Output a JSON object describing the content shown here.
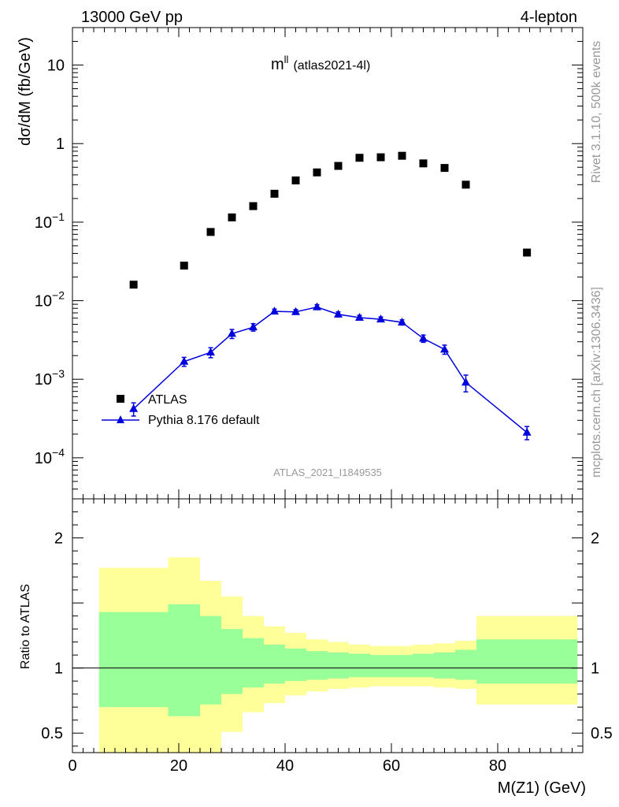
{
  "header": {
    "left": "13000 GeV pp",
    "right": "4-lepton"
  },
  "side_text": {
    "top": "Rivet 3.1.10,  500k events",
    "bottom": "mcplots.cern.ch [arXiv:1306.3436]"
  },
  "chart_data": [
    {
      "type": "scatter",
      "panel": "main",
      "title": "m",
      "title_sup": "ll",
      "title_note": "(atlas2021-4l)",
      "watermark": "ATLAS_2021_I1849535",
      "ylabel": "dσ/dM (fb/GeV)",
      "yscale": "log",
      "ylim": [
        3e-05,
        30
      ],
      "xlim": [
        0,
        96
      ],
      "y_ticks": [
        {
          "value": 0.0001,
          "base": "10",
          "exp": "−4"
        },
        {
          "value": 0.001,
          "base": "10",
          "exp": "−3"
        },
        {
          "value": 0.01,
          "base": "10",
          "exp": "−2"
        },
        {
          "value": 0.1,
          "base": "10",
          "exp": "−1"
        },
        {
          "value": 1,
          "base": "1",
          "exp": ""
        },
        {
          "value": 10,
          "base": "10",
          "exp": ""
        }
      ],
      "legend": {
        "position": "bottom-left",
        "data_label": "ATLAS",
        "mc_label": "Pythia 8.176 default"
      },
      "series": [
        {
          "name": "ATLAS",
          "marker": "square",
          "color": "#000000",
          "x": [
            11.5,
            21,
            26,
            30,
            34,
            38,
            42,
            46,
            50,
            54,
            58,
            62,
            66,
            70,
            74,
            85.5
          ],
          "y": [
            0.016,
            0.028,
            0.075,
            0.115,
            0.16,
            0.23,
            0.34,
            0.43,
            0.52,
            0.66,
            0.67,
            0.7,
            0.56,
            0.49,
            0.3,
            0.041
          ]
        },
        {
          "name": "Pythia 8.176 default",
          "marker": "triangle",
          "color": "#0000dd",
          "x": [
            11.5,
            21,
            26,
            30,
            34,
            38,
            42,
            46,
            50,
            54,
            58,
            62,
            66,
            70,
            74,
            85.5
          ],
          "y": [
            0.00042,
            0.00168,
            0.0022,
            0.0038,
            0.0046,
            0.0073,
            0.0072,
            0.0083,
            0.0067,
            0.0061,
            0.0058,
            0.0053,
            0.0033,
            0.0024,
            0.00091,
            0.00021
          ],
          "err": [
            8e-05,
            0.00022,
            0.00032,
            0.0005,
            0.0005,
            0.0005,
            0.0005,
            0.0006,
            0.0005,
            0.0004,
            0.0004,
            0.0004,
            0.00035,
            0.00032,
            0.00022,
            4e-05
          ]
        }
      ]
    },
    {
      "type": "area",
      "panel": "ratio",
      "ylabel": "Ratio to ATLAS",
      "xlabel": "M(Z1) (GeV)",
      "ylim": [
        0.35,
        2.3
      ],
      "xlim": [
        0,
        96
      ],
      "x_ticks": [
        0,
        20,
        40,
        60,
        80
      ],
      "y_ticks": [
        0.5,
        1,
        2
      ],
      "y_tick_labels": [
        "0.5",
        "1",
        "2"
      ],
      "reference_line": 1,
      "band_colors": {
        "inner": "#99ff99",
        "outer": "#ffff99"
      },
      "bins": [
        {
          "lo": 5,
          "hi": 18,
          "in_lo": 0.7,
          "in_hi": 1.43,
          "out_lo": 0.35,
          "out_hi": 1.77
        },
        {
          "lo": 18,
          "hi": 24,
          "in_lo": 0.63,
          "in_hi": 1.49,
          "out_lo": 0.35,
          "out_hi": 1.85
        },
        {
          "lo": 24,
          "hi": 28,
          "in_lo": 0.72,
          "in_hi": 1.4,
          "out_lo": 0.35,
          "out_hi": 1.67
        },
        {
          "lo": 28,
          "hi": 32,
          "in_lo": 0.8,
          "in_hi": 1.3,
          "out_lo": 0.51,
          "out_hi": 1.55
        },
        {
          "lo": 32,
          "hi": 36,
          "in_lo": 0.85,
          "in_hi": 1.23,
          "out_lo": 0.66,
          "out_hi": 1.4
        },
        {
          "lo": 36,
          "hi": 40,
          "in_lo": 0.88,
          "in_hi": 1.18,
          "out_lo": 0.73,
          "out_hi": 1.32
        },
        {
          "lo": 40,
          "hi": 44,
          "in_lo": 0.9,
          "in_hi": 1.15,
          "out_lo": 0.79,
          "out_hi": 1.27
        },
        {
          "lo": 44,
          "hi": 48,
          "in_lo": 0.91,
          "in_hi": 1.13,
          "out_lo": 0.82,
          "out_hi": 1.22
        },
        {
          "lo": 48,
          "hi": 52,
          "in_lo": 0.92,
          "in_hi": 1.12,
          "out_lo": 0.84,
          "out_hi": 1.2
        },
        {
          "lo": 52,
          "hi": 56,
          "in_lo": 0.93,
          "in_hi": 1.11,
          "out_lo": 0.85,
          "out_hi": 1.18
        },
        {
          "lo": 56,
          "hi": 60,
          "in_lo": 0.93,
          "in_hi": 1.1,
          "out_lo": 0.86,
          "out_hi": 1.17
        },
        {
          "lo": 60,
          "hi": 64,
          "in_lo": 0.93,
          "in_hi": 1.1,
          "out_lo": 0.86,
          "out_hi": 1.17
        },
        {
          "lo": 64,
          "hi": 68,
          "in_lo": 0.93,
          "in_hi": 1.11,
          "out_lo": 0.86,
          "out_hi": 1.18
        },
        {
          "lo": 68,
          "hi": 72,
          "in_lo": 0.92,
          "in_hi": 1.12,
          "out_lo": 0.85,
          "out_hi": 1.19
        },
        {
          "lo": 72,
          "hi": 76,
          "in_lo": 0.91,
          "in_hi": 1.14,
          "out_lo": 0.84,
          "out_hi": 1.21
        },
        {
          "lo": 76,
          "hi": 95,
          "in_lo": 0.88,
          "in_hi": 1.22,
          "out_lo": 0.72,
          "out_hi": 1.4
        }
      ]
    }
  ]
}
